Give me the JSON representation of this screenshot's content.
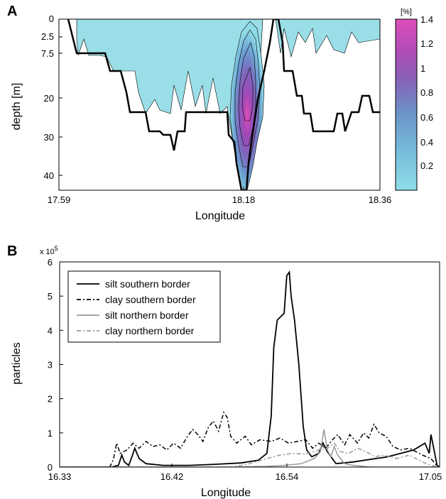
{
  "chart_data": [
    {
      "panel": "A",
      "type": "heatmap",
      "xlabel": "Longitude",
      "ylabel": "depth [m]",
      "x_ticks": [
        "17.59",
        "18.18",
        "18.36"
      ],
      "y_ticks": [
        "0",
        "2.5",
        "7.5",
        "20",
        "30",
        "40"
      ],
      "colorbar": {
        "unit": "[%]",
        "ticks": [
          "0.2",
          "0.4",
          "0.6",
          "0.8",
          "1",
          "1.2",
          "1.4"
        ],
        "range": [
          0,
          1.4
        ],
        "colors": [
          "#8fdde8",
          "#78c1dc",
          "#6c94c8",
          "#8860b8",
          "#b34bb8",
          "#dc4fb8"
        ]
      },
      "plume": {
        "center_longitude": 18.22,
        "peak_depth_m": 20,
        "peak_value": 1.4
      },
      "fill_color": "#9adfe8",
      "bathymetry_color": "#000000"
    },
    {
      "panel": "B",
      "type": "line",
      "xlabel": "Longitude",
      "ylabel": "particles",
      "y_multiplier_label": "x 10",
      "y_multiplier_exponent": "5",
      "x_ticks": [
        "16.33",
        "16.42",
        "16.54",
        "17.05"
      ],
      "y_ticks": [
        "0",
        "1",
        "2",
        "3",
        "4",
        "5",
        "6"
      ],
      "ylim": [
        0,
        6
      ],
      "legend_position": "top-left",
      "series": [
        {
          "name": "silt southern border",
          "color": "#000000",
          "dash": "solid",
          "points": [
            [
              0,
              0
            ],
            [
              60,
              0
            ],
            [
              68,
              0.05
            ],
            [
              72,
              0.35
            ],
            [
              75,
              0.15
            ],
            [
              80,
              0.05
            ],
            [
              83,
              0.25
            ],
            [
              87,
              0.55
            ],
            [
              92,
              0.25
            ],
            [
              100,
              0.1
            ],
            [
              120,
              0.05
            ],
            [
              150,
              0.05
            ],
            [
              180,
              0.08
            ],
            [
              210,
              0.12
            ],
            [
              230,
              0.2
            ],
            [
              240,
              0.4
            ],
            [
              245,
              1.5
            ],
            [
              248,
              3.5
            ],
            [
              252,
              4.3
            ],
            [
              256,
              4.4
            ],
            [
              260,
              4.5
            ],
            [
              263,
              5.6
            ],
            [
              266,
              5.7
            ],
            [
              268,
              5.0
            ],
            [
              272,
              4.3
            ],
            [
              277,
              3.0
            ],
            [
              282,
              1.2
            ],
            [
              286,
              0.5
            ],
            [
              292,
              0.3
            ],
            [
              300,
              0.4
            ],
            [
              305,
              0.7
            ],
            [
              310,
              0.45
            ],
            [
              320,
              0.1
            ],
            [
              340,
              0.15
            ],
            [
              380,
              0.3
            ],
            [
              410,
              0.5
            ],
            [
              423,
              0.7
            ],
            [
              428,
              0.4
            ],
            [
              430,
              0.95
            ],
            [
              432,
              0.7
            ],
            [
              437,
              0.05
            ],
            [
              440,
              0
            ]
          ]
        },
        {
          "name": "clay southern border",
          "color": "#000000",
          "dash": "6,3,2,3",
          "points": [
            [
              0,
              0
            ],
            [
              58,
              0
            ],
            [
              62,
              0.2
            ],
            [
              66,
              0.7
            ],
            [
              70,
              0.4
            ],
            [
              78,
              0.5
            ],
            [
              85,
              0.7
            ],
            [
              92,
              0.55
            ],
            [
              100,
              0.75
            ],
            [
              108,
              0.6
            ],
            [
              116,
              0.65
            ],
            [
              124,
              0.5
            ],
            [
              132,
              0.7
            ],
            [
              140,
              0.55
            ],
            [
              148,
              0.9
            ],
            [
              154,
              1.1
            ],
            [
              160,
              0.95
            ],
            [
              166,
              0.75
            ],
            [
              172,
              1.15
            ],
            [
              178,
              1.35
            ],
            [
              184,
              1.05
            ],
            [
              190,
              1.6
            ],
            [
              194,
              1.45
            ],
            [
              198,
              0.9
            ],
            [
              205,
              0.7
            ],
            [
              215,
              0.9
            ],
            [
              222,
              0.65
            ],
            [
              232,
              0.8
            ],
            [
              245,
              0.75
            ],
            [
              255,
              0.85
            ],
            [
              265,
              0.7
            ],
            [
              275,
              0.75
            ],
            [
              285,
              0.8
            ],
            [
              293,
              0.55
            ],
            [
              300,
              0.7
            ],
            [
              308,
              0.55
            ],
            [
              316,
              0.8
            ],
            [
              322,
              0.95
            ],
            [
              330,
              0.65
            ],
            [
              336,
              0.95
            ],
            [
              345,
              0.7
            ],
            [
              352,
              1.0
            ],
            [
              358,
              0.85
            ],
            [
              364,
              1.25
            ],
            [
              370,
              1.0
            ],
            [
              378,
              0.9
            ],
            [
              386,
              0.6
            ],
            [
              395,
              0.5
            ],
            [
              405,
              0.55
            ],
            [
              420,
              0.35
            ],
            [
              430,
              0.25
            ],
            [
              438,
              0
            ]
          ]
        },
        {
          "name": "silt northern border",
          "color": "#999999",
          "dash": "solid",
          "points": [
            [
              0,
              0
            ],
            [
              200,
              0
            ],
            [
              240,
              0.02
            ],
            [
              260,
              0.05
            ],
            [
              280,
              0.1
            ],
            [
              295,
              0.25
            ],
            [
              302,
              0.45
            ],
            [
              306,
              1.1
            ],
            [
              310,
              0.5
            ],
            [
              314,
              0.3
            ],
            [
              318,
              0.6
            ],
            [
              322,
              0.35
            ],
            [
              330,
              0.1
            ],
            [
              340,
              0.05
            ],
            [
              360,
              0
            ],
            [
              440,
              0
            ]
          ]
        },
        {
          "name": "clay northern border",
          "color": "#999999",
          "dash": "6,3,2,3",
          "points": [
            [
              0,
              0
            ],
            [
              200,
              0
            ],
            [
              220,
              0.1
            ],
            [
              240,
              0.25
            ],
            [
              255,
              0.35
            ],
            [
              270,
              0.4
            ],
            [
              285,
              0.38
            ],
            [
              300,
              0.5
            ],
            [
              310,
              0.55
            ],
            [
              318,
              0.7
            ],
            [
              325,
              0.45
            ],
            [
              335,
              0.4
            ],
            [
              345,
              0.55
            ],
            [
              355,
              0.45
            ],
            [
              365,
              0.3
            ],
            [
              375,
              0.35
            ],
            [
              390,
              0.25
            ],
            [
              405,
              0.35
            ],
            [
              420,
              0.15
            ],
            [
              430,
              0.05
            ],
            [
              440,
              0
            ]
          ]
        }
      ]
    }
  ]
}
